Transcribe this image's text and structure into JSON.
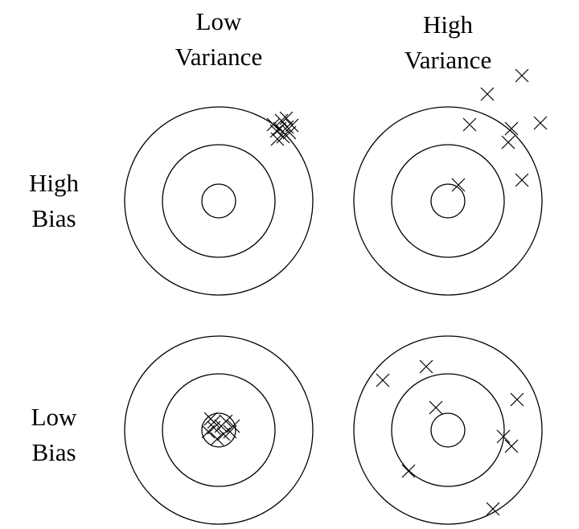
{
  "column_headers": {
    "low_variance": [
      "Low",
      "Variance"
    ],
    "high_variance": [
      "High",
      "Variance"
    ]
  },
  "row_headers": {
    "high_bias": [
      "High",
      "Bias"
    ],
    "low_bias": [
      "Low",
      "Bias"
    ]
  },
  "panels": [
    {
      "id": "high-bias-low-variance",
      "marks": 10
    },
    {
      "id": "high-bias-high-variance",
      "marks": 9
    },
    {
      "id": "low-bias-low-variance",
      "marks": 10
    },
    {
      "id": "low-bias-high-variance",
      "marks": 10
    }
  ],
  "colors": {
    "ink": "#000000",
    "background": "#ffffff"
  }
}
